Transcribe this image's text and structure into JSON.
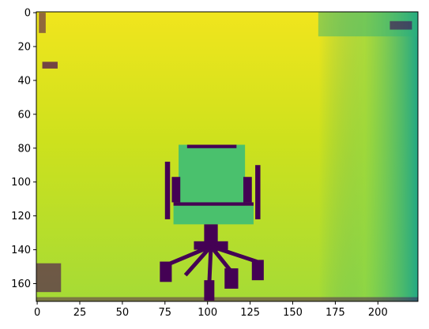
{
  "chart_data": {
    "type": "heatmap",
    "title": "",
    "xlabel": "",
    "ylabel": "",
    "xlim": [
      -0.5,
      223.5
    ],
    "ylim": [
      170.5,
      -0.5
    ],
    "x_ticks": [
      0,
      25,
      50,
      75,
      100,
      125,
      150,
      175,
      200
    ],
    "y_ticks": [
      0,
      20,
      40,
      60,
      80,
      100,
      120,
      140,
      160
    ],
    "colormap": "viridis",
    "colorbar": false,
    "grid": false,
    "image_shape": [
      171,
      224
    ],
    "image_content": "depth map of an office chair in a room; far wall brightest (yellow), right side darker (teal), invalid depth pixels shown as dark purple",
    "colors": {
      "far": "#f1e51d",
      "mid": "#a5db36",
      "wall": "#7ad151",
      "chair": "#4ac16d",
      "right_side": "#22a884",
      "edge": "#1f9e89",
      "invalid": "#440154"
    }
  }
}
